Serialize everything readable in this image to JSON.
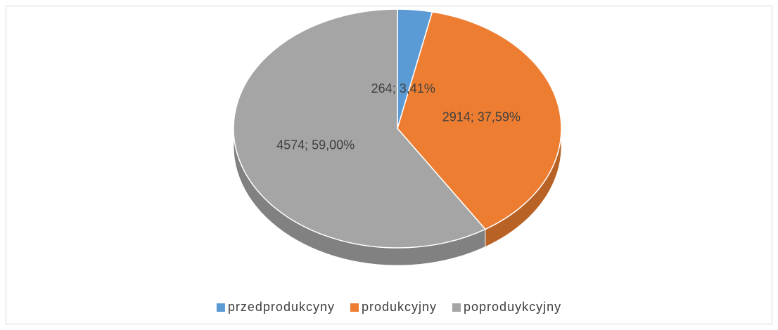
{
  "chart_data": {
    "type": "pie",
    "categories": [
      "przedprodukcyny",
      "produkcyjny",
      "poproduykcyjny"
    ],
    "values": [
      264,
      2914,
      4574
    ],
    "value_labels": [
      "264; 3,41%",
      "2914; 37,59%",
      "4574; 59,00%"
    ],
    "colors": [
      "#5b9bd5",
      "#ed7d31",
      "#a5a5a5"
    ],
    "legend": "bottom"
  }
}
